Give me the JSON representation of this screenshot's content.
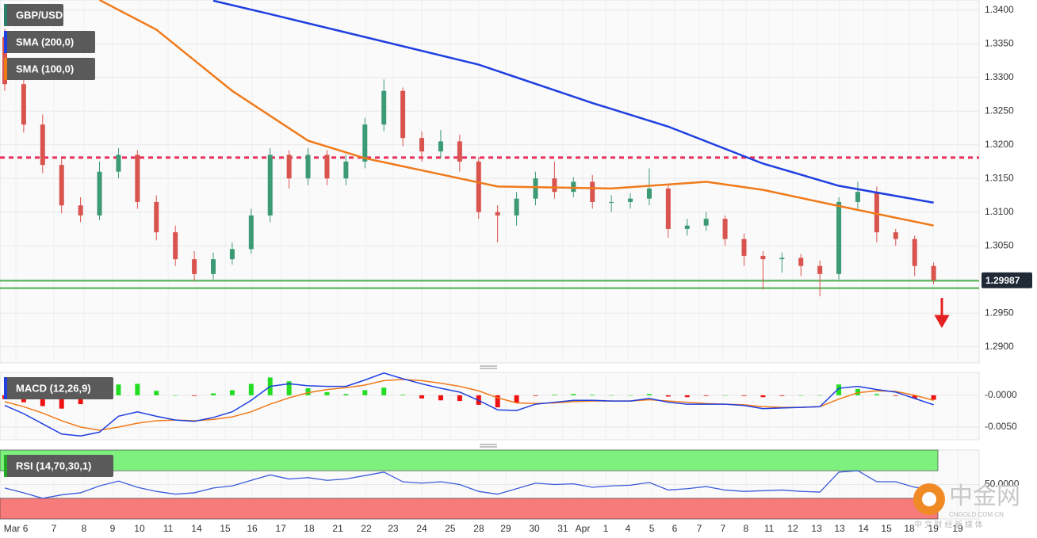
{
  "chart_data": [
    {
      "type": "candlestick",
      "name": "GBP/USD",
      "name_color": "#2e7d6b",
      "up_color": "#3c9a74",
      "down_color": "#d9534f",
      "open": [
        1.336,
        1.329,
        1.323,
        1.317,
        1.311,
        1.3095,
        1.316,
        1.3185,
        1.3115,
        1.307,
        1.303,
        1.3008,
        1.303,
        1.3045,
        1.3095,
        1.3185,
        1.315,
        1.3185,
        1.315,
        1.3175,
        1.323,
        1.328,
        1.321,
        1.319,
        1.3205,
        1.3175,
        1.31,
        1.3095,
        1.312,
        1.315,
        1.313,
        1.3145,
        1.3115,
        1.3115,
        1.312,
        1.3135,
        1.3075,
        1.308,
        1.309,
        1.306,
        1.3035,
        1.303,
        1.3032,
        1.302,
        1.3008,
        1.3115,
        1.313,
        1.307,
        1.306,
        1.302
      ],
      "high": [
        1.3372,
        1.33,
        1.3245,
        1.318,
        1.3122,
        1.3175,
        1.3195,
        1.3192,
        1.3125,
        1.308,
        1.3042,
        1.304,
        1.3055,
        1.3105,
        1.3195,
        1.3192,
        1.3195,
        1.3192,
        1.3185,
        1.324,
        1.3297,
        1.3285,
        1.322,
        1.3222,
        1.3215,
        1.3182,
        1.311,
        1.313,
        1.316,
        1.3175,
        1.3152,
        1.3155,
        1.3125,
        1.3128,
        1.3165,
        1.3142,
        1.309,
        1.31,
        1.3095,
        1.3068,
        1.3042,
        1.304,
        1.3038,
        1.3028,
        1.3122,
        1.3145,
        1.3138,
        1.3075,
        1.3065,
        1.3025
      ],
      "low": [
        1.328,
        1.3218,
        1.3158,
        1.3098,
        1.3085,
        1.3088,
        1.315,
        1.3105,
        1.3058,
        1.302,
        1.2998,
        1.3,
        1.3022,
        1.3038,
        1.3085,
        1.3135,
        1.314,
        1.314,
        1.314,
        1.3165,
        1.322,
        1.3198,
        1.3175,
        1.318,
        1.316,
        1.309,
        1.3055,
        1.308,
        1.311,
        1.312,
        1.3122,
        1.3105,
        1.31,
        1.3105,
        1.311,
        1.3062,
        1.3065,
        1.3072,
        1.305,
        1.302,
        1.2985,
        1.301,
        1.3005,
        1.2975,
        1.3,
        1.3105,
        1.3055,
        1.305,
        1.3005,
        1.2993
      ],
      "close": [
        1.329,
        1.323,
        1.317,
        1.311,
        1.3095,
        1.316,
        1.3185,
        1.3115,
        1.307,
        1.303,
        1.3008,
        1.303,
        1.3045,
        1.3095,
        1.3185,
        1.315,
        1.3185,
        1.315,
        1.3175,
        1.323,
        1.328,
        1.321,
        1.319,
        1.3205,
        1.3175,
        1.31,
        1.3095,
        1.312,
        1.315,
        1.313,
        1.3145,
        1.3115,
        1.3115,
        1.312,
        1.3135,
        1.3075,
        1.308,
        1.309,
        1.306,
        1.3035,
        1.303,
        1.3032,
        1.302,
        1.3008,
        1.3115,
        1.313,
        1.307,
        1.306,
        1.302,
        1.2999
      ],
      "overlays": [
        {
          "name": "SMA (200,0)",
          "color": "#1f3fe0",
          "x": [
            11,
            14,
            19,
            25,
            31,
            35,
            40,
            44,
            49
          ],
          "values": [
            1.3414,
            1.3394,
            1.336,
            1.3319,
            1.3262,
            1.3227,
            1.3172,
            1.3139,
            1.3114
          ]
        },
        {
          "name": "SMA (100,0)",
          "color": "#f07a1a",
          "x": [
            5,
            8,
            12,
            16,
            19,
            23,
            26,
            32,
            37,
            40,
            44,
            49
          ],
          "values": [
            1.3415,
            1.3371,
            1.328,
            1.3206,
            1.318,
            1.3156,
            1.3138,
            1.3135,
            1.3145,
            1.3133,
            1.3109,
            1.308
          ]
        }
      ],
      "hlines": [
        {
          "value": 1.3181,
          "color": "#e8305a",
          "dash": true
        },
        {
          "value": 1.2998,
          "color": "#4caf50",
          "dash": false
        },
        {
          "value": 1.2987,
          "color": "#4caf50",
          "dash": false
        }
      ],
      "last_price": 1.29987,
      "xlim": [
        -0.25,
        51.4
      ],
      "ylim": [
        1.2876,
        1.3415
      ],
      "yticks": [
        {
          "value": 1.29,
          "label": "1.2900"
        },
        {
          "value": 1.295,
          "label": "1.2950"
        },
        {
          "value": 1.3,
          "label": "1.3000"
        },
        {
          "value": 1.305,
          "label": "1.3050"
        },
        {
          "value": 1.31,
          "label": "1.3100"
        },
        {
          "value": 1.315,
          "label": "1.3150"
        },
        {
          "value": 1.32,
          "label": "1.3200"
        },
        {
          "value": 1.325,
          "label": "1.3250"
        },
        {
          "value": 1.33,
          "label": "1.3300"
        },
        {
          "value": 1.335,
          "label": "1.3350"
        },
        {
          "value": 1.34,
          "label": "1.3400"
        }
      ],
      "grid": true
    },
    {
      "type": "macd",
      "name": "MACD (12,26,9)",
      "name_color": "#1f3fe0",
      "macd": {
        "color": "#1f3fe0",
        "values": [
          -0.0016,
          -0.0029,
          -0.0045,
          -0.0061,
          -0.0064,
          -0.0058,
          -0.0033,
          -0.0026,
          -0.0033,
          -0.0039,
          -0.0041,
          -0.0035,
          -0.0026,
          -0.0008,
          0.0014,
          0.0018,
          0.0015,
          0.0014,
          0.0014,
          0.0024,
          0.0035,
          0.0026,
          0.0018,
          0.0011,
          0.0005,
          -0.0008,
          -0.0023,
          -0.0024,
          -0.0014,
          -0.0011,
          -0.0008,
          -0.0008,
          -0.0009,
          -0.0009,
          -0.0005,
          -0.0011,
          -0.0014,
          -0.0014,
          -0.0014,
          -0.0016,
          -0.0021,
          -0.002,
          -0.0019,
          -0.0018,
          0.0011,
          0.0014,
          0.0009,
          0.0005,
          -0.0005,
          -0.0015
        ]
      },
      "signal": {
        "color": "#f07a1a",
        "values": [
          -0.001,
          -0.0018,
          -0.0028,
          -0.004,
          -0.005,
          -0.0055,
          -0.005,
          -0.0044,
          -0.004,
          -0.0039,
          -0.004,
          -0.0038,
          -0.0034,
          -0.0026,
          -0.0014,
          -0.0004,
          0.0004,
          0.0009,
          0.0012,
          0.0016,
          0.0023,
          0.0025,
          0.0023,
          0.0019,
          0.0014,
          0.0007,
          -0.0004,
          -0.0012,
          -0.0013,
          -0.0012,
          -0.001,
          -0.0009,
          -0.0009,
          -0.0009,
          -0.0007,
          -0.0009,
          -0.0011,
          -0.0013,
          -0.0014,
          -0.0015,
          -0.0018,
          -0.0019,
          -0.0019,
          -0.0018,
          -0.0006,
          0.0004,
          0.0007,
          0.0006,
          0.0,
          -0.0008
        ]
      },
      "histogram": {
        "up_color": "#22dd22",
        "down_color": "#ee1111",
        "values": [
          -0.0006,
          -0.0011,
          -0.0017,
          -0.0021,
          -0.0014,
          -0.0003,
          0.0017,
          0.0018,
          0.0007,
          0.0,
          -0.0001,
          0.0003,
          0.0008,
          0.0018,
          0.0028,
          0.0022,
          0.0011,
          0.0005,
          0.0002,
          0.0008,
          0.0012,
          0.0001,
          -0.0005,
          -0.0008,
          -0.0009,
          -0.0015,
          -0.0019,
          -0.0012,
          -0.0001,
          0.0001,
          0.0002,
          0.0001,
          0.0,
          0.0,
          0.0002,
          -0.0002,
          -0.0003,
          -0.0001,
          0.0,
          -0.0001,
          -0.0003,
          -0.0001,
          0.0,
          0.0,
          0.0017,
          0.001,
          0.0002,
          -0.0001,
          -0.0005,
          -0.0007
        ]
      },
      "xlim": [
        -0.25,
        51.4
      ],
      "ylim": [
        -0.007,
        0.0036
      ],
      "yticks": [
        {
          "value": 0,
          "label": "-0.0000"
        },
        {
          "value": -0.005,
          "label": "-0.0050"
        }
      ]
    },
    {
      "type": "line",
      "name": "RSI (14,70,30,1)",
      "name_color": "#22aa22",
      "color": "#3b5bdb",
      "values": [
        45,
        38,
        30,
        35,
        38,
        48,
        55,
        46,
        40,
        36,
        38,
        45,
        48,
        56,
        64,
        58,
        60,
        56,
        58,
        63,
        68,
        54,
        52,
        54,
        50,
        40,
        36,
        44,
        52,
        50,
        51,
        46,
        48,
        49,
        53,
        42,
        44,
        47,
        42,
        40,
        41,
        42,
        40,
        39,
        68,
        70,
        54,
        54,
        46,
        44
      ],
      "bands": [
        {
          "from": 70,
          "to": 100,
          "color": "#7ef07e"
        },
        {
          "from": 0,
          "to": 30,
          "color": "#f77b7b"
        }
      ],
      "xlim": [
        -0.25,
        51.4
      ],
      "ylim": [
        0,
        100
      ],
      "yticks": [
        {
          "value": 50,
          "label": "50.0000"
        }
      ],
      "xticks": [
        {
          "value": 0.59,
          "label": "Mar 6"
        },
        {
          "value": 2.59,
          "label": "7"
        },
        {
          "value": 4.18,
          "label": "8"
        },
        {
          "value": 5.69,
          "label": "9"
        },
        {
          "value": 7.11,
          "label": "10"
        },
        {
          "value": 8.62,
          "label": "11"
        },
        {
          "value": 10.12,
          "label": "14"
        },
        {
          "value": 11.63,
          "label": "15"
        },
        {
          "value": 13.05,
          "label": "16"
        },
        {
          "value": 14.56,
          "label": "17"
        },
        {
          "value": 16.06,
          "label": "18"
        },
        {
          "value": 17.57,
          "label": "21"
        },
        {
          "value": 19.07,
          "label": "22"
        },
        {
          "value": 20.49,
          "label": "23"
        },
        {
          "value": 22.0,
          "label": "24"
        },
        {
          "value": 23.5,
          "label": "25"
        },
        {
          "value": 25.01,
          "label": "28"
        },
        {
          "value": 26.43,
          "label": "29"
        },
        {
          "value": 27.94,
          "label": "30"
        },
        {
          "value": 29.44,
          "label": "31"
        },
        {
          "value": 30.49,
          "label": "Apr"
        },
        {
          "value": 31.7,
          "label": "1"
        },
        {
          "value": 32.87,
          "label": "4"
        },
        {
          "value": 34.13,
          "label": "5"
        },
        {
          "value": 35.34,
          "label": "6"
        },
        {
          "value": 36.64,
          "label": "7"
        },
        {
          "value": 37.89,
          "label": "7"
        },
        {
          "value": 39.1,
          "label": "8"
        },
        {
          "value": 40.32,
          "label": "11"
        },
        {
          "value": 41.57,
          "label": "12"
        },
        {
          "value": 42.83,
          "label": "13"
        },
        {
          "value": 44.04,
          "label": "13"
        },
        {
          "value": 45.3,
          "label": "14"
        },
        {
          "value": 46.51,
          "label": "15"
        },
        {
          "value": 47.72,
          "label": "18"
        },
        {
          "value": 48.98,
          "label": "19"
        },
        {
          "value": 50.27,
          "label": "19"
        }
      ]
    }
  ],
  "watermark": {
    "name": "中金网",
    "domain": "CNGOLD.COM.CN",
    "tagline": "中 文 财 经 新 媒 体"
  }
}
